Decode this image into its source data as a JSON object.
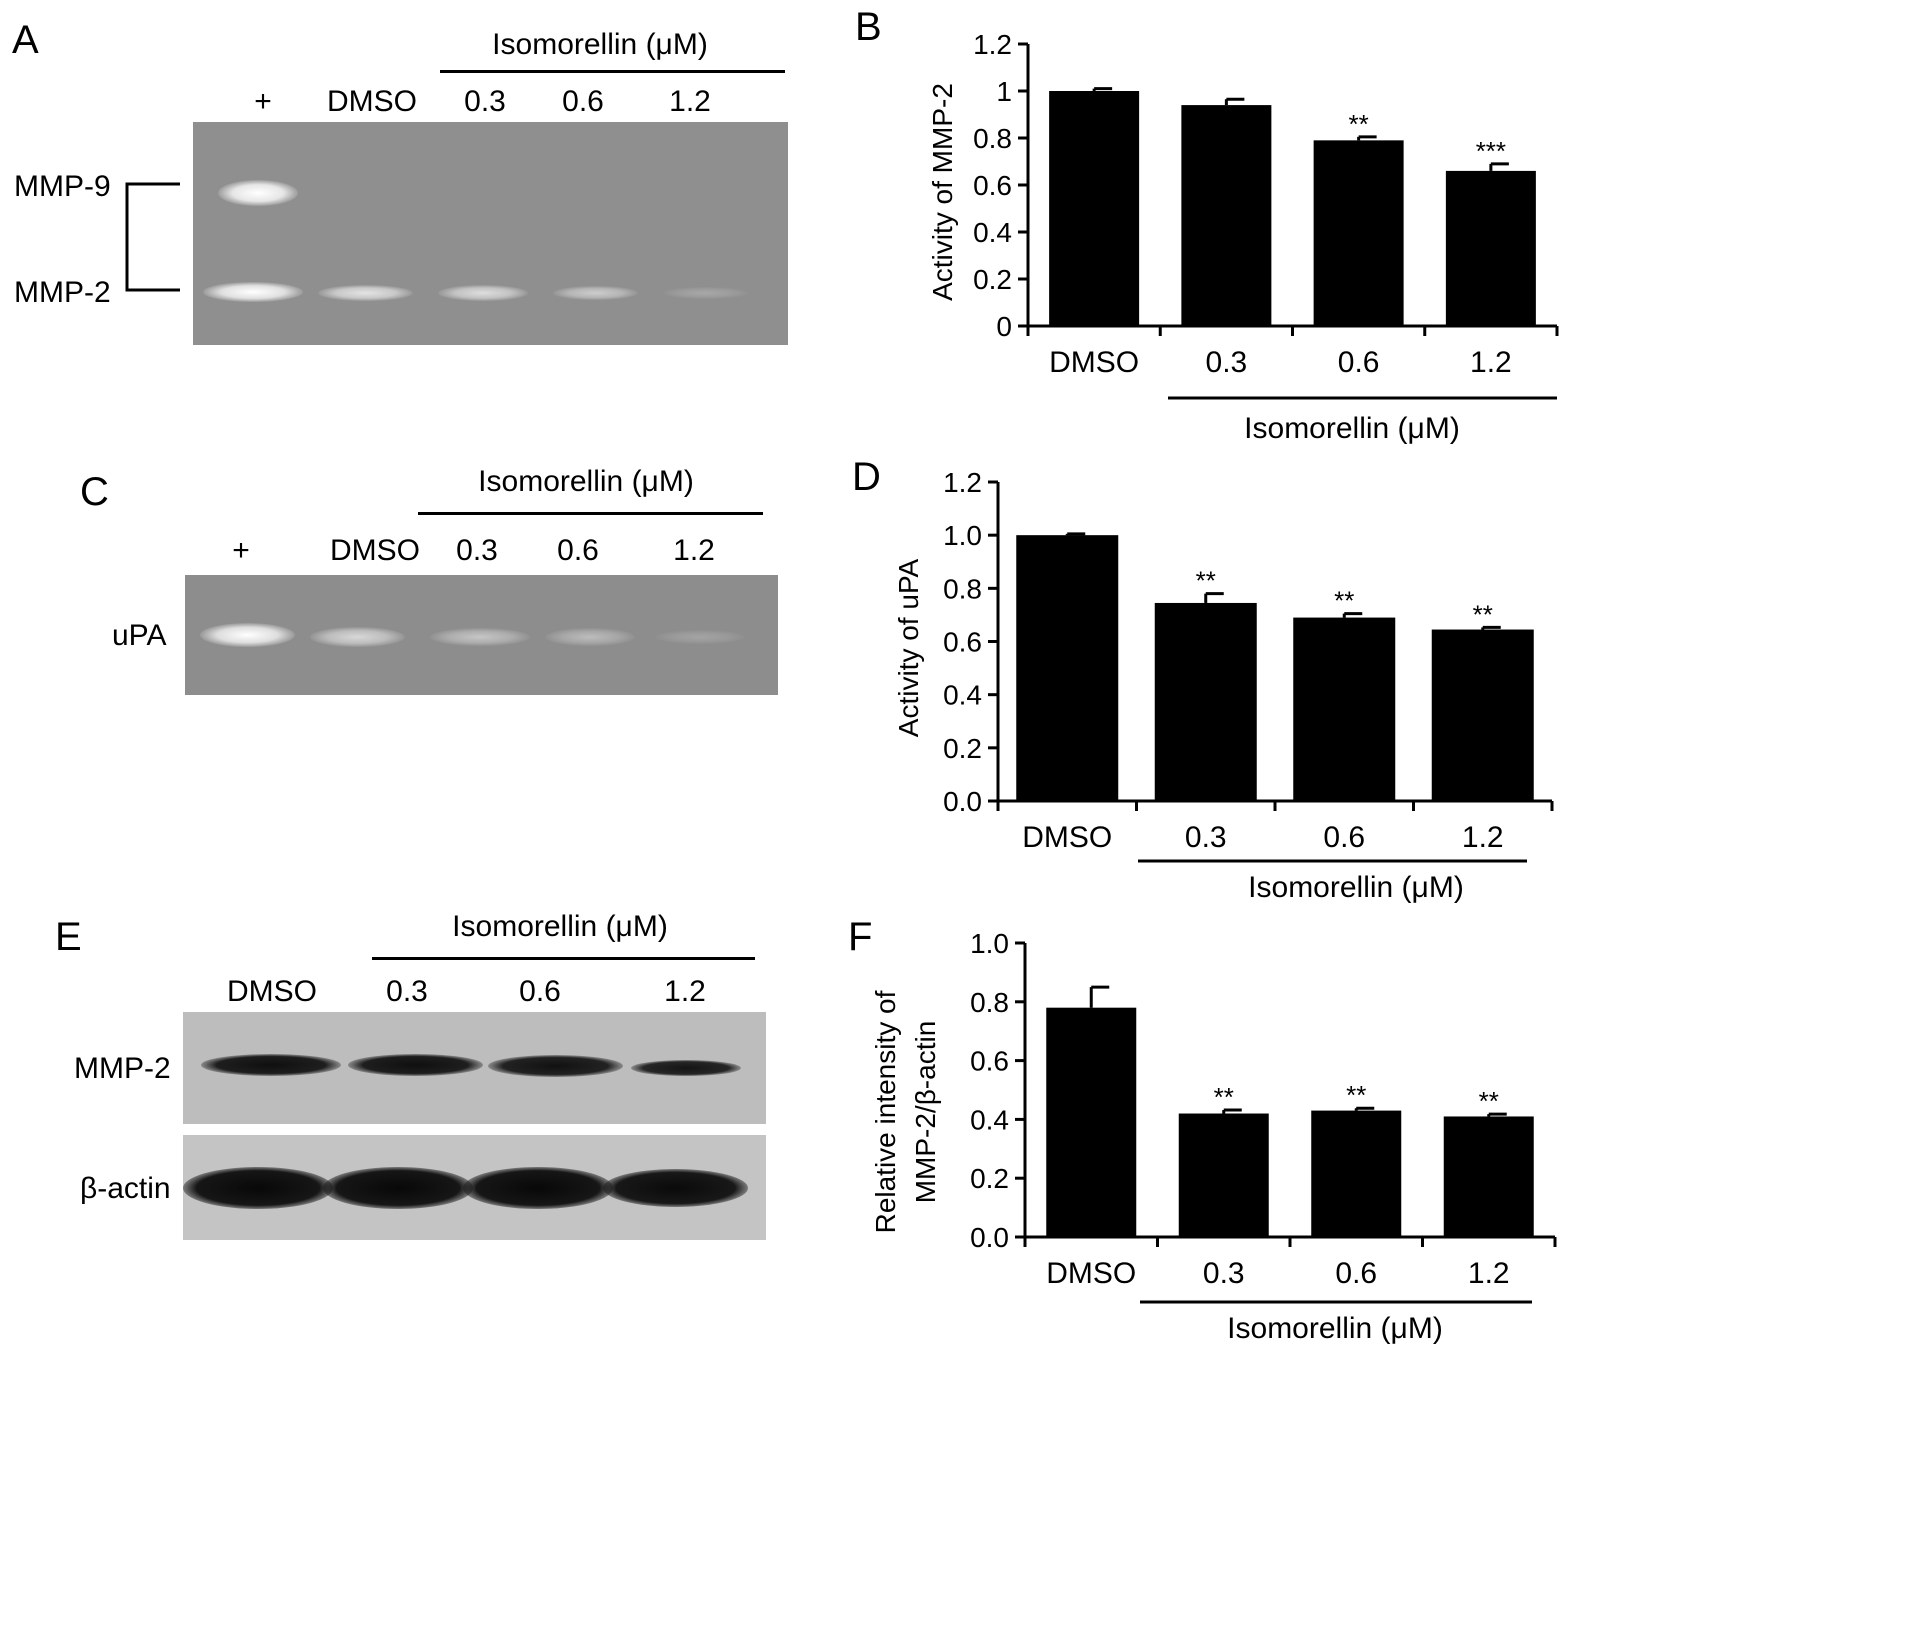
{
  "panels": {
    "A": {
      "letter": "A",
      "header": "Isomorellin (μM)",
      "lanes": [
        "+",
        "DMSO",
        "0.3",
        "0.6",
        "1.2"
      ],
      "bands": [
        "MMP-9",
        "MMP-2"
      ]
    },
    "C": {
      "letter": "C",
      "header": "Isomorellin (μM)",
      "lanes": [
        "+",
        "DMSO",
        "0.3",
        "0.6",
        "1.2"
      ],
      "bands": [
        "uPA"
      ]
    },
    "E": {
      "letter": "E",
      "header": "Isomorellin (μM)",
      "lanes": [
        "DMSO",
        "0.3",
        "0.6",
        "1.2"
      ],
      "bands": [
        "MMP-2",
        "β-actin"
      ]
    }
  },
  "chart_data": [
    {
      "panel": "B",
      "type": "bar",
      "ylabel": [
        "Activity of MMP-2"
      ],
      "group_label": "Isomorellin (μM)",
      "categories": [
        "DMSO",
        "0.3",
        "0.6",
        "1.2"
      ],
      "values": [
        1.0,
        0.94,
        0.79,
        0.66
      ],
      "errors": [
        0.01,
        0.025,
        0.015,
        0.03
      ],
      "significance": [
        "",
        "",
        "**",
        "***"
      ],
      "ylim": [
        0,
        1.2
      ],
      "yticks": [
        "0",
        "0.2",
        "0.4",
        "0.6",
        "0.8",
        "1",
        "1.2"
      ],
      "color": "#000000"
    },
    {
      "panel": "D",
      "type": "bar",
      "ylabel": [
        "Activity of uPA"
      ],
      "group_label": "Isomorellin (μM)",
      "categories": [
        "DMSO",
        "0.3",
        "0.6",
        "1.2"
      ],
      "values": [
        1.0,
        0.745,
        0.69,
        0.645
      ],
      "errors": [
        0.005,
        0.035,
        0.015,
        0.008
      ],
      "significance": [
        "",
        "**",
        "**",
        "**"
      ],
      "ylim": [
        0,
        1.2
      ],
      "yticks": [
        "0.0",
        "0.2",
        "0.4",
        "0.6",
        "0.8",
        "1.0",
        "1.2"
      ],
      "color": "#000000"
    },
    {
      "panel": "F",
      "type": "bar",
      "ylabel": [
        "Relative intensity of",
        "MMP-2/β-actin"
      ],
      "group_label": "Isomorellin (μM)",
      "categories": [
        "DMSO",
        "0.3",
        "0.6",
        "1.2"
      ],
      "values": [
        0.78,
        0.42,
        0.43,
        0.41
      ],
      "errors": [
        0.07,
        0.012,
        0.008,
        0.008
      ],
      "significance": [
        "",
        "**",
        "**",
        "**"
      ],
      "ylim": [
        0,
        1.0
      ],
      "yticks": [
        "0.0",
        "0.2",
        "0.4",
        "0.6",
        "0.8",
        "1.0"
      ],
      "color": "#000000"
    }
  ]
}
